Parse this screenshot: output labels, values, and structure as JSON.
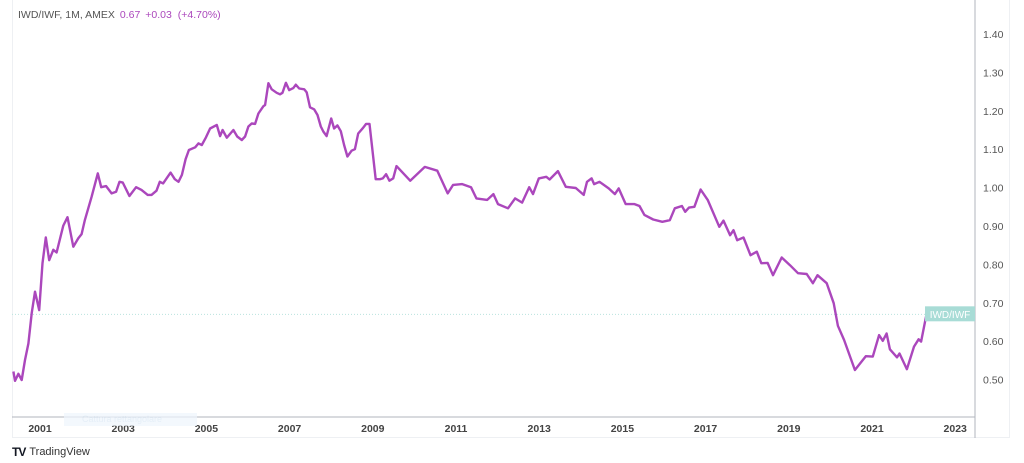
{
  "legend": {
    "symbol": "IWD/IWF, 1M, AMEX",
    "last": "0.67",
    "change": "+0.03",
    "change_pct": "(+4.70%)"
  },
  "watermark": "Cattura rettangolare",
  "footer": {
    "logo": "TradingView",
    "brand": "TradingView"
  },
  "colors": {
    "line": "#ab47bc",
    "label_bg": "#a8dcd6",
    "axis": "#b2b5be",
    "text": "#555555"
  },
  "chart_data": {
    "type": "line",
    "title": "",
    "xlabel": "",
    "ylabel": "",
    "x_unit": "year",
    "xlim": [
      2000.33,
      2023.5
    ],
    "ylim": [
      0.42,
      1.47
    ],
    "x_ticks": [
      "2001",
      "2003",
      "2005",
      "2007",
      "2009",
      "2011",
      "2013",
      "2015",
      "2017",
      "2019",
      "2021",
      "2023"
    ],
    "y_ticks": [
      "0.50",
      "0.60",
      "0.70",
      "0.80",
      "0.90",
      "1.00",
      "1.10",
      "1.20",
      "1.30",
      "1.40"
    ],
    "grid": false,
    "y_axis_side": "right",
    "last_value_line": 0.67,
    "last_value_label": "IWD/IWF",
    "series": [
      {
        "name": "IWD/IWF",
        "points": [
          [
            2000.36,
            0.521
          ],
          [
            2000.4,
            0.497
          ],
          [
            2000.48,
            0.515
          ],
          [
            2000.56,
            0.499
          ],
          [
            2000.64,
            0.551
          ],
          [
            2000.72,
            0.594
          ],
          [
            2000.8,
            0.673
          ],
          [
            2000.88,
            0.729
          ],
          [
            2000.98,
            0.681
          ],
          [
            2001.06,
            0.803
          ],
          [
            2001.14,
            0.87
          ],
          [
            2001.22,
            0.811
          ],
          [
            2001.32,
            0.838
          ],
          [
            2001.4,
            0.831
          ],
          [
            2001.56,
            0.901
          ],
          [
            2001.66,
            0.923
          ],
          [
            2001.8,
            0.846
          ],
          [
            2001.92,
            0.868
          ],
          [
            2002.0,
            0.879
          ],
          [
            2002.08,
            0.916
          ],
          [
            2002.24,
            0.976
          ],
          [
            2002.39,
            1.037
          ],
          [
            2002.47,
            1.001
          ],
          [
            2002.59,
            1.004
          ],
          [
            2002.72,
            0.985
          ],
          [
            2002.83,
            0.989
          ],
          [
            2002.91,
            1.015
          ],
          [
            2002.99,
            1.013
          ],
          [
            2003.15,
            0.978
          ],
          [
            2003.31,
            1.001
          ],
          [
            2003.44,
            0.994
          ],
          [
            2003.59,
            0.981
          ],
          [
            2003.68,
            0.981
          ],
          [
            2003.8,
            0.992
          ],
          [
            2003.88,
            1.015
          ],
          [
            2003.96,
            1.011
          ],
          [
            2004.14,
            1.039
          ],
          [
            2004.24,
            1.022
          ],
          [
            2004.33,
            1.015
          ],
          [
            2004.41,
            1.033
          ],
          [
            2004.5,
            1.074
          ],
          [
            2004.58,
            1.098
          ],
          [
            2004.73,
            1.105
          ],
          [
            2004.81,
            1.115
          ],
          [
            2004.89,
            1.111
          ],
          [
            2004.99,
            1.131
          ],
          [
            2005.09,
            1.154
          ],
          [
            2005.25,
            1.163
          ],
          [
            2005.33,
            1.134
          ],
          [
            2005.39,
            1.15
          ],
          [
            2005.49,
            1.13
          ],
          [
            2005.65,
            1.15
          ],
          [
            2005.74,
            1.133
          ],
          [
            2005.85,
            1.124
          ],
          [
            2005.93,
            1.133
          ],
          [
            2006.01,
            1.159
          ],
          [
            2006.09,
            1.167
          ],
          [
            2006.17,
            1.166
          ],
          [
            2006.25,
            1.193
          ],
          [
            2006.37,
            1.212
          ],
          [
            2006.41,
            1.215
          ],
          [
            2006.49,
            1.272
          ],
          [
            2006.57,
            1.256
          ],
          [
            2006.69,
            1.247
          ],
          [
            2006.77,
            1.243
          ],
          [
            2006.83,
            1.247
          ],
          [
            2006.91,
            1.273
          ],
          [
            2006.99,
            1.254
          ],
          [
            2007.09,
            1.259
          ],
          [
            2007.15,
            1.268
          ],
          [
            2007.23,
            1.258
          ],
          [
            2007.35,
            1.256
          ],
          [
            2007.41,
            1.248
          ],
          [
            2007.49,
            1.209
          ],
          [
            2007.59,
            1.204
          ],
          [
            2007.67,
            1.189
          ],
          [
            2007.75,
            1.159
          ],
          [
            2007.81,
            1.146
          ],
          [
            2007.89,
            1.134
          ],
          [
            2008.0,
            1.18
          ],
          [
            2008.07,
            1.154
          ],
          [
            2008.15,
            1.162
          ],
          [
            2008.23,
            1.147
          ],
          [
            2008.31,
            1.111
          ],
          [
            2008.39,
            1.081
          ],
          [
            2008.49,
            1.096
          ],
          [
            2008.57,
            1.1
          ],
          [
            2008.65,
            1.141
          ],
          [
            2008.77,
            1.156
          ],
          [
            2008.84,
            1.166
          ],
          [
            2008.92,
            1.166
          ],
          [
            2009.07,
            1.022
          ],
          [
            2009.17,
            1.022
          ],
          [
            2009.24,
            1.024
          ],
          [
            2009.32,
            1.035
          ],
          [
            2009.4,
            1.018
          ],
          [
            2009.49,
            1.024
          ],
          [
            2009.57,
            1.056
          ],
          [
            2009.9,
            1.018
          ],
          [
            2010.25,
            1.054
          ],
          [
            2010.55,
            1.044
          ],
          [
            2010.8,
            0.985
          ],
          [
            2010.93,
            1.007
          ],
          [
            2011.15,
            1.009
          ],
          [
            2011.36,
            1.001
          ],
          [
            2011.49,
            0.972
          ],
          [
            2011.75,
            0.968
          ],
          [
            2011.9,
            0.983
          ],
          [
            2012.01,
            0.957
          ],
          [
            2012.25,
            0.946
          ],
          [
            2012.42,
            0.972
          ],
          [
            2012.59,
            0.961
          ],
          [
            2012.76,
            1.001
          ],
          [
            2012.85,
            0.983
          ],
          [
            2012.99,
            1.024
          ],
          [
            2013.17,
            1.028
          ],
          [
            2013.25,
            1.021
          ],
          [
            2013.45,
            1.043
          ],
          [
            2013.64,
            1.002
          ],
          [
            2013.88,
            0.999
          ],
          [
            2014.07,
            0.981
          ],
          [
            2014.15,
            1.015
          ],
          [
            2014.26,
            1.024
          ],
          [
            2014.32,
            1.009
          ],
          [
            2014.45,
            1.015
          ],
          [
            2014.67,
            0.998
          ],
          [
            2014.82,
            0.983
          ],
          [
            2014.91,
            0.998
          ],
          [
            2015.08,
            0.957
          ],
          [
            2015.29,
            0.957
          ],
          [
            2015.41,
            0.952
          ],
          [
            2015.53,
            0.929
          ],
          [
            2015.74,
            0.917
          ],
          [
            2015.96,
            0.911
          ],
          [
            2016.14,
            0.915
          ],
          [
            2016.26,
            0.946
          ],
          [
            2016.43,
            0.952
          ],
          [
            2016.51,
            0.937
          ],
          [
            2016.6,
            0.948
          ],
          [
            2016.73,
            0.95
          ],
          [
            2016.88,
            0.995
          ],
          [
            2017.05,
            0.968
          ],
          [
            2017.33,
            0.898
          ],
          [
            2017.43,
            0.914
          ],
          [
            2017.59,
            0.876
          ],
          [
            2017.67,
            0.889
          ],
          [
            2017.76,
            0.863
          ],
          [
            2017.91,
            0.87
          ],
          [
            2018.08,
            0.824
          ],
          [
            2018.23,
            0.833
          ],
          [
            2018.34,
            0.803
          ],
          [
            2018.49,
            0.804
          ],
          [
            2018.62,
            0.772
          ],
          [
            2018.83,
            0.818
          ],
          [
            2019.03,
            0.798
          ],
          [
            2019.22,
            0.777
          ],
          [
            2019.43,
            0.775
          ],
          [
            2019.58,
            0.751
          ],
          [
            2019.69,
            0.772
          ],
          [
            2019.91,
            0.751
          ],
          [
            2020.08,
            0.699
          ],
          [
            2020.18,
            0.64
          ],
          [
            2020.33,
            0.603
          ],
          [
            2020.59,
            0.525
          ],
          [
            2020.85,
            0.561
          ],
          [
            2021.02,
            0.56
          ],
          [
            2021.17,
            0.616
          ],
          [
            2021.26,
            0.601
          ],
          [
            2021.35,
            0.62
          ],
          [
            2021.43,
            0.579
          ],
          [
            2021.6,
            0.558
          ],
          [
            2021.66,
            0.568
          ],
          [
            2021.84,
            0.527
          ],
          [
            2022.01,
            0.586
          ],
          [
            2022.12,
            0.605
          ],
          [
            2022.18,
            0.599
          ],
          [
            2022.31,
            0.67
          ]
        ]
      }
    ]
  }
}
